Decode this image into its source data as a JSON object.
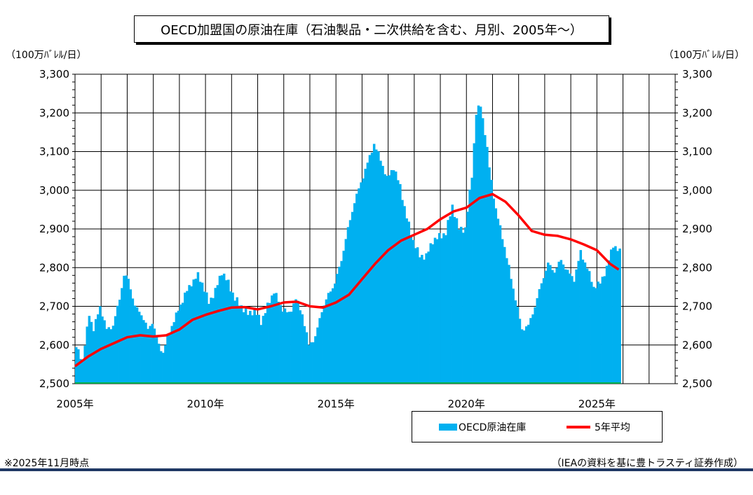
{
  "title": "OECD加盟国の原油在庫（石油製品・二次供給を含む、月別、2005年～）",
  "unit_left": "（100万ﾊﾞﾚﾙ/日）",
  "unit_right": "（100万ﾊﾞﾚﾙ/日）",
  "note": "※2025年11月時点",
  "source": "（IEAの資料を基に豊トラスティ証券作成）",
  "legend": {
    "bar_label": "OECD原油在庫",
    "line_label": "5年平均"
  },
  "colors": {
    "bar": "#00B0F0",
    "line": "#FF0000",
    "footer_rule": "#1F3864",
    "baseline": "#00B050"
  },
  "chart_data": {
    "type": "bar",
    "ylim": [
      2500,
      3300
    ],
    "yticks": [
      2500,
      2600,
      2700,
      2800,
      2900,
      3000,
      3100,
      3200,
      3300
    ],
    "ytick_labels": [
      "2,500",
      "2,600",
      "2,700",
      "2,800",
      "2,900",
      "3,000",
      "3,100",
      "3,200",
      "3,300"
    ],
    "x_range_years": [
      2005,
      2028
    ],
    "xtick_labels": [
      {
        "year": 2005,
        "label": "2005年"
      },
      {
        "year": 2010,
        "label": "2010年"
      },
      {
        "year": 2015,
        "label": "2015年"
      },
      {
        "year": 2020,
        "label": "2020年"
      },
      {
        "year": 2025,
        "label": "2025年"
      }
    ],
    "grid": true,
    "legend_position": "bottom-right",
    "series": [
      {
        "name": "OECD原油在庫",
        "type": "bar",
        "keypoints": [
          [
            "2005-01",
            2595
          ],
          [
            "2005-04",
            2560
          ],
          [
            "2005-07",
            2680
          ],
          [
            "2005-09",
            2640
          ],
          [
            "2005-12",
            2700
          ],
          [
            "2006-03",
            2640
          ],
          [
            "2006-06",
            2650
          ],
          [
            "2006-09",
            2720
          ],
          [
            "2006-11",
            2780
          ],
          [
            "2007-01",
            2770
          ],
          [
            "2007-04",
            2700
          ],
          [
            "2007-07",
            2680
          ],
          [
            "2007-10",
            2640
          ],
          [
            "2007-12",
            2660
          ],
          [
            "2008-03",
            2600
          ],
          [
            "2008-05",
            2580
          ],
          [
            "2008-07",
            2620
          ],
          [
            "2008-09",
            2650
          ],
          [
            "2008-12",
            2690
          ],
          [
            "2009-03",
            2730
          ],
          [
            "2009-06",
            2760
          ],
          [
            "2009-09",
            2780
          ],
          [
            "2009-11",
            2760
          ],
          [
            "2010-02",
            2710
          ],
          [
            "2010-05",
            2740
          ],
          [
            "2010-08",
            2790
          ],
          [
            "2010-11",
            2760
          ],
          [
            "2011-02",
            2720
          ],
          [
            "2011-05",
            2700
          ],
          [
            "2011-08",
            2680
          ],
          [
            "2011-11",
            2690
          ],
          [
            "2012-02",
            2660
          ],
          [
            "2012-05",
            2700
          ],
          [
            "2012-08",
            2740
          ],
          [
            "2012-11",
            2700
          ],
          [
            "2013-03",
            2680
          ],
          [
            "2013-06",
            2720
          ],
          [
            "2013-09",
            2680
          ],
          [
            "2013-12",
            2600
          ],
          [
            "2014-03",
            2620
          ],
          [
            "2014-06",
            2690
          ],
          [
            "2014-09",
            2730
          ],
          [
            "2014-12",
            2760
          ],
          [
            "2015-03",
            2820
          ],
          [
            "2015-06",
            2900
          ],
          [
            "2015-09",
            2970
          ],
          [
            "2015-12",
            3020
          ],
          [
            "2016-03",
            3070
          ],
          [
            "2016-06",
            3120
          ],
          [
            "2016-09",
            3080
          ],
          [
            "2016-12",
            3030
          ],
          [
            "2017-03",
            3060
          ],
          [
            "2017-06",
            3010
          ],
          [
            "2017-09",
            2930
          ],
          [
            "2017-12",
            2870
          ],
          [
            "2018-03",
            2830
          ],
          [
            "2018-06",
            2830
          ],
          [
            "2018-09",
            2870
          ],
          [
            "2018-12",
            2880
          ],
          [
            "2019-03",
            2890
          ],
          [
            "2019-06",
            2960
          ],
          [
            "2019-09",
            2900
          ],
          [
            "2019-12",
            2900
          ],
          [
            "2020-03",
            3040
          ],
          [
            "2020-05",
            3200
          ],
          [
            "2020-07",
            3220
          ],
          [
            "2020-09",
            3150
          ],
          [
            "2020-11",
            3060
          ],
          [
            "2021-02",
            2950
          ],
          [
            "2021-05",
            2880
          ],
          [
            "2021-08",
            2800
          ],
          [
            "2021-11",
            2720
          ],
          [
            "2022-02",
            2640
          ],
          [
            "2022-05",
            2650
          ],
          [
            "2022-08",
            2700
          ],
          [
            "2022-11",
            2760
          ],
          [
            "2023-02",
            2810
          ],
          [
            "2023-05",
            2790
          ],
          [
            "2023-08",
            2820
          ],
          [
            "2023-11",
            2790
          ],
          [
            "2024-02",
            2770
          ],
          [
            "2024-05",
            2840
          ],
          [
            "2024-08",
            2800
          ],
          [
            "2024-11",
            2750
          ],
          [
            "2025-02",
            2760
          ],
          [
            "2025-05",
            2800
          ],
          [
            "2025-08",
            2860
          ],
          [
            "2025-11",
            2840
          ]
        ]
      },
      {
        "name": "5年平均",
        "type": "line",
        "keypoints": [
          [
            "2005-01",
            2545
          ],
          [
            "2005-07",
            2570
          ],
          [
            "2006-01",
            2590
          ],
          [
            "2006-07",
            2605
          ],
          [
            "2007-01",
            2620
          ],
          [
            "2007-07",
            2625
          ],
          [
            "2008-01",
            2622
          ],
          [
            "2008-07",
            2625
          ],
          [
            "2009-01",
            2640
          ],
          [
            "2009-07",
            2665
          ],
          [
            "2010-01",
            2678
          ],
          [
            "2010-07",
            2688
          ],
          [
            "2011-01",
            2697
          ],
          [
            "2011-07",
            2698
          ],
          [
            "2012-01",
            2692
          ],
          [
            "2012-07",
            2700
          ],
          [
            "2013-01",
            2710
          ],
          [
            "2013-07",
            2712
          ],
          [
            "2014-01",
            2700
          ],
          [
            "2014-07",
            2697
          ],
          [
            "2015-01",
            2710
          ],
          [
            "2015-07",
            2730
          ],
          [
            "2016-01",
            2770
          ],
          [
            "2016-07",
            2810
          ],
          [
            "2017-01",
            2845
          ],
          [
            "2017-07",
            2870
          ],
          [
            "2018-01",
            2885
          ],
          [
            "2018-07",
            2900
          ],
          [
            "2019-01",
            2925
          ],
          [
            "2019-07",
            2945
          ],
          [
            "2020-01",
            2955
          ],
          [
            "2020-07",
            2980
          ],
          [
            "2021-01",
            2990
          ],
          [
            "2021-07",
            2970
          ],
          [
            "2022-01",
            2935
          ],
          [
            "2022-07",
            2895
          ],
          [
            "2023-01",
            2885
          ],
          [
            "2023-07",
            2882
          ],
          [
            "2024-01",
            2873
          ],
          [
            "2024-07",
            2860
          ],
          [
            "2025-01",
            2845
          ],
          [
            "2025-07",
            2810
          ],
          [
            "2025-11",
            2795
          ]
        ]
      }
    ]
  }
}
